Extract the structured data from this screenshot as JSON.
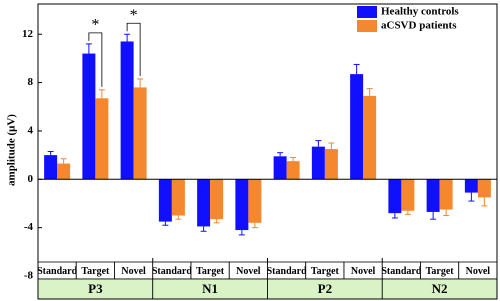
{
  "chart_data": {
    "type": "grouped-bar",
    "y_label": "amplitude (μV)",
    "groups": [
      "P3",
      "N1",
      "P2",
      "N2"
    ],
    "categories": [
      "Standard",
      "Target",
      "Novel",
      "Standard",
      "Target",
      "Novel",
      "Standard",
      "Target",
      "Novel",
      "Standard",
      "Target",
      "Novel"
    ],
    "series": [
      {
        "name": "Healthy controls",
        "color": "#1010ff",
        "values": [
          2.0,
          10.4,
          11.4,
          -3.5,
          -3.9,
          -4.2,
          1.9,
          2.7,
          8.7,
          -2.8,
          -2.7,
          -1.1
        ],
        "errors": [
          0.3,
          0.8,
          0.6,
          0.3,
          0.4,
          0.4,
          0.3,
          0.5,
          0.8,
          0.4,
          0.6,
          0.7
        ]
      },
      {
        "name": "aCSVD patients",
        "color": "#f5872e",
        "values": [
          1.3,
          6.7,
          7.6,
          -3.0,
          -3.3,
          -3.6,
          1.5,
          2.5,
          6.9,
          -2.6,
          -2.5,
          -1.5
        ],
        "errors": [
          0.4,
          0.7,
          0.7,
          0.3,
          0.3,
          0.4,
          0.3,
          0.5,
          0.6,
          0.3,
          0.5,
          0.7
        ]
      }
    ],
    "annotations": [
      "*",
      "*"
    ],
    "ylim": [
      -8,
      14.5
    ],
    "yticks": [
      -8,
      -4,
      0,
      4,
      8,
      12
    ],
    "grid": false,
    "legend": "upper right"
  }
}
